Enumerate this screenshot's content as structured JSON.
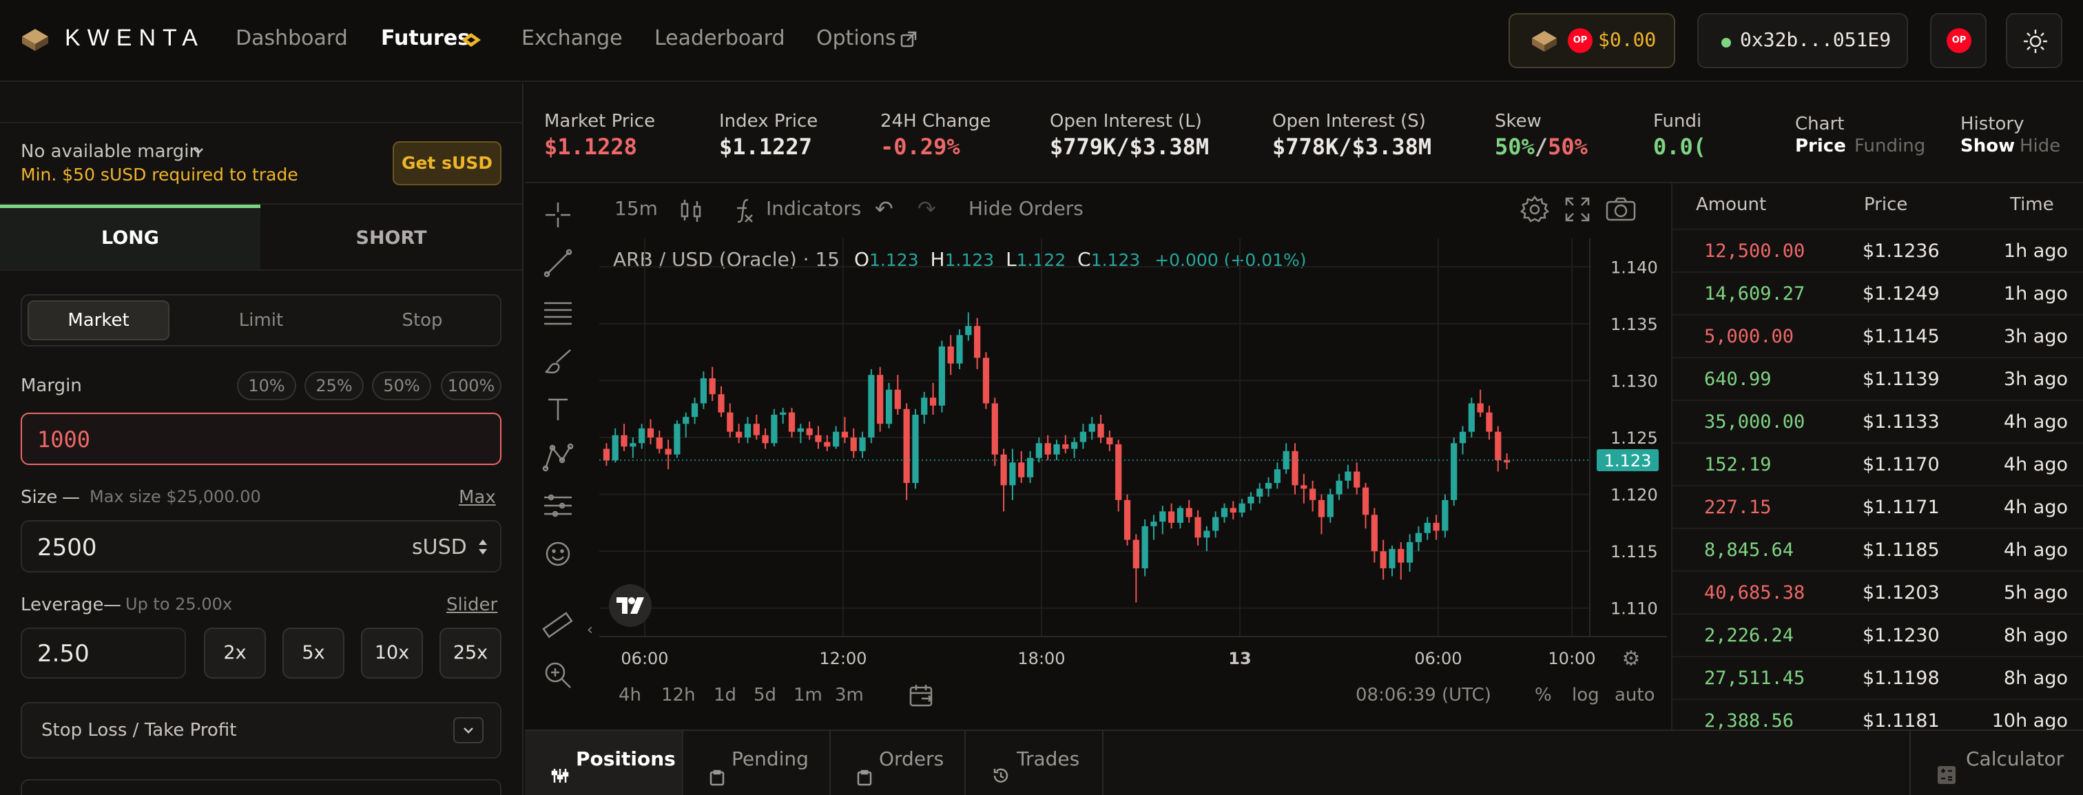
{
  "header": {
    "logo_text": "KWENTA",
    "nav": [
      {
        "label": "Dashboard"
      },
      {
        "label": "Futures"
      },
      {
        "label": "Exchange"
      },
      {
        "label": "Leaderboard"
      },
      {
        "label": "Options"
      }
    ],
    "balance": "$0.00",
    "op_badge": "OP",
    "wallet": "0x32b...051E9"
  },
  "left": {
    "margin_status": "No available margin",
    "margin_warning": "Min. $50 sUSD required to trade",
    "get_susd": "Get sUSD",
    "long_label": "LONG",
    "short_label": "SHORT",
    "order_types": [
      "Market",
      "Limit",
      "Stop"
    ],
    "margin_label": "Margin",
    "percents": [
      "10%",
      "25%",
      "50%",
      "100%"
    ],
    "margin_value": "1000",
    "size_label": "Size",
    "size_dash": "—",
    "max_size": "Max size $25,000.00",
    "max_link": "Max",
    "size_value": "2500",
    "size_unit": "sUSD",
    "leverage_label": "Leverage",
    "leverage_dash": "—",
    "leverage_max": "Up to 25.00x",
    "slider_link": "Slider",
    "leverage_value": "2.50",
    "leverage_options": [
      "2x",
      "5x",
      "10x",
      "25x"
    ],
    "sltp_label": "Stop Loss / Take Profit"
  },
  "market": {
    "items": [
      {
        "label": "Market Price",
        "value": "$1.1228",
        "color": "#ef6868"
      },
      {
        "label": "Index Price",
        "value": "$1.1227",
        "color": "#ece8e3"
      },
      {
        "label": "24H Change",
        "value": "-0.29%",
        "color": "#ef6868"
      },
      {
        "label": "Open Interest (L)",
        "value": "$779K/$3.38M",
        "color": "#ece8e3"
      },
      {
        "label": "Open Interest (S)",
        "value": "$778K/$3.38M",
        "color": "#ece8e3"
      }
    ],
    "skew_label": "Skew",
    "skew_long": "50%",
    "skew_sep": "/",
    "skew_short": "50%",
    "funding_label": "Fundi",
    "funding_value": "0.0(",
    "chart_label": "Chart",
    "chart_price": "Price",
    "chart_funding": "Funding",
    "history_label": "History",
    "history_show": "Show",
    "history_hide": "Hide"
  },
  "chart": {
    "interval": "15m",
    "indicators": "Indicators",
    "hide_orders": "Hide Orders",
    "symbol": "ARB / USD (Oracle) · 15",
    "ohlc": {
      "o_label": "O",
      "o": "1.123",
      "h_label": "H",
      "h": "1.123",
      "l_label": "L",
      "l": "1.122",
      "c_label": "C",
      "c": "1.123",
      "change": "+0.000 (+0.01%)"
    },
    "y_ticks": [
      "1.140",
      "1.135",
      "1.130",
      "1.125",
      "1.120",
      "1.115",
      "1.110"
    ],
    "current_price": "1.123",
    "x_ticks": [
      "06:00",
      "12:00",
      "18:00",
      "13",
      "06:00",
      "10:00"
    ],
    "ranges": [
      "4h",
      "12h",
      "1d",
      "5d",
      "1m",
      "3m"
    ],
    "clock": "08:06:39 (UTC)",
    "pct": "%",
    "log": "log",
    "auto": "auto",
    "up_color": "#26a69a",
    "down_color": "#ef5350",
    "candles": [
      [
        1.124,
        1.1245,
        1.1225,
        1.123
      ],
      [
        1.123,
        1.1258,
        1.1228,
        1.1252
      ],
      [
        1.1252,
        1.1262,
        1.1238,
        1.1242
      ],
      [
        1.1242,
        1.125,
        1.1232,
        1.1245
      ],
      [
        1.1245,
        1.1262,
        1.124,
        1.1258
      ],
      [
        1.1258,
        1.1266,
        1.1244,
        1.125
      ],
      [
        1.125,
        1.1256,
        1.1236,
        1.124
      ],
      [
        1.124,
        1.1248,
        1.1222,
        1.1235
      ],
      [
        1.1235,
        1.1265,
        1.1232,
        1.1262
      ],
      [
        1.1262,
        1.1272,
        1.125,
        1.1268
      ],
      [
        1.1268,
        1.1285,
        1.1262,
        1.128
      ],
      [
        1.128,
        1.1308,
        1.1275,
        1.1302
      ],
      [
        1.1302,
        1.1312,
        1.1282,
        1.1288
      ],
      [
        1.1288,
        1.1295,
        1.1268,
        1.1272
      ],
      [
        1.1272,
        1.128,
        1.125,
        1.1255
      ],
      [
        1.1255,
        1.1262,
        1.1245,
        1.125
      ],
      [
        1.125,
        1.1268,
        1.1245,
        1.1262
      ],
      [
        1.1262,
        1.127,
        1.1248,
        1.1252
      ],
      [
        1.1252,
        1.1258,
        1.124,
        1.1245
      ],
      [
        1.1245,
        1.1275,
        1.1242,
        1.127
      ],
      [
        1.127,
        1.1276,
        1.1262,
        1.1272
      ],
      [
        1.1272,
        1.1276,
        1.125,
        1.1255
      ],
      [
        1.1255,
        1.1262,
        1.1245,
        1.1258
      ],
      [
        1.1258,
        1.1264,
        1.1248,
        1.1252
      ],
      [
        1.1252,
        1.126,
        1.124,
        1.1246
      ],
      [
        1.1246,
        1.1252,
        1.1238,
        1.1242
      ],
      [
        1.1242,
        1.126,
        1.124,
        1.1255
      ],
      [
        1.1255,
        1.1268,
        1.1245,
        1.125
      ],
      [
        1.125,
        1.1258,
        1.1232,
        1.1238
      ],
      [
        1.1238,
        1.1255,
        1.1232,
        1.125
      ],
      [
        1.125,
        1.131,
        1.1245,
        1.1305
      ],
      [
        1.1305,
        1.1312,
        1.1255,
        1.1262
      ],
      [
        1.1262,
        1.1298,
        1.1258,
        1.1292
      ],
      [
        1.1292,
        1.1305,
        1.127,
        1.1275
      ],
      [
        1.1275,
        1.128,
        1.1195,
        1.121
      ],
      [
        1.121,
        1.1275,
        1.1205,
        1.127
      ],
      [
        1.127,
        1.129,
        1.1262,
        1.1285
      ],
      [
        1.1285,
        1.1298,
        1.127,
        1.1278
      ],
      [
        1.1278,
        1.1335,
        1.1272,
        1.133
      ],
      [
        1.133,
        1.134,
        1.1305,
        1.1315
      ],
      [
        1.1315,
        1.1345,
        1.131,
        1.134
      ],
      [
        1.134,
        1.136,
        1.1335,
        1.1348
      ],
      [
        1.1348,
        1.1355,
        1.131,
        1.132
      ],
      [
        1.132,
        1.1325,
        1.1275,
        1.128
      ],
      [
        1.128,
        1.1285,
        1.1225,
        1.1235
      ],
      [
        1.1235,
        1.124,
        1.1185,
        1.1208
      ],
      [
        1.1208,
        1.124,
        1.1195,
        1.1228
      ],
      [
        1.1228,
        1.1238,
        1.121,
        1.1215
      ],
      [
        1.1215,
        1.1238,
        1.121,
        1.1232
      ],
      [
        1.1232,
        1.125,
        1.1228,
        1.1245
      ],
      [
        1.1245,
        1.1252,
        1.123,
        1.1235
      ],
      [
        1.1235,
        1.1248,
        1.123,
        1.1244
      ],
      [
        1.1244,
        1.1252,
        1.1236,
        1.124
      ],
      [
        1.124,
        1.125,
        1.1232,
        1.1246
      ],
      [
        1.1246,
        1.1262,
        1.124,
        1.1255
      ],
      [
        1.1255,
        1.1268,
        1.1248,
        1.1262
      ],
      [
        1.1262,
        1.127,
        1.1245,
        1.125
      ],
      [
        1.125,
        1.1256,
        1.1238,
        1.1244
      ],
      [
        1.1244,
        1.1248,
        1.1185,
        1.1195
      ],
      [
        1.1195,
        1.12,
        1.1155,
        1.116
      ],
      [
        1.116,
        1.1165,
        1.1105,
        1.1135
      ],
      [
        1.1135,
        1.1178,
        1.1128,
        1.1172
      ],
      [
        1.1172,
        1.1182,
        1.116,
        1.1176
      ],
      [
        1.1176,
        1.119,
        1.1165,
        1.1185
      ],
      [
        1.1185,
        1.1192,
        1.117,
        1.1175
      ],
      [
        1.1175,
        1.119,
        1.117,
        1.1188
      ],
      [
        1.1188,
        1.1195,
        1.1175,
        1.118
      ],
      [
        1.118,
        1.1186,
        1.1155,
        1.1162
      ],
      [
        1.1162,
        1.1172,
        1.115,
        1.1168
      ],
      [
        1.1168,
        1.1185,
        1.1162,
        1.118
      ],
      [
        1.118,
        1.1192,
        1.1175,
        1.1188
      ],
      [
        1.1188,
        1.1194,
        1.1178,
        1.1184
      ],
      [
        1.1184,
        1.1196,
        1.118,
        1.1192
      ],
      [
        1.1192,
        1.1202,
        1.1186,
        1.1198
      ],
      [
        1.1198,
        1.121,
        1.1192,
        1.1205
      ],
      [
        1.1205,
        1.1215,
        1.1198,
        1.121
      ],
      [
        1.121,
        1.1228,
        1.1205,
        1.1222
      ],
      [
        1.1222,
        1.1245,
        1.1218,
        1.1238
      ],
      [
        1.1238,
        1.1245,
        1.12,
        1.1208
      ],
      [
        1.1208,
        1.1218,
        1.1192,
        1.1205
      ],
      [
        1.1205,
        1.1212,
        1.1185,
        1.1195
      ],
      [
        1.1195,
        1.12,
        1.1165,
        1.118
      ],
      [
        1.118,
        1.1205,
        1.1175,
        1.12
      ],
      [
        1.12,
        1.1218,
        1.1195,
        1.1212
      ],
      [
        1.1212,
        1.1226,
        1.1205,
        1.122
      ],
      [
        1.122,
        1.1228,
        1.12,
        1.1206
      ],
      [
        1.1206,
        1.121,
        1.117,
        1.1182
      ],
      [
        1.1182,
        1.1188,
        1.114,
        1.115
      ],
      [
        1.115,
        1.116,
        1.1125,
        1.1135
      ],
      [
        1.1135,
        1.1155,
        1.1128,
        1.1152
      ],
      [
        1.1152,
        1.1158,
        1.1125,
        1.114
      ],
      [
        1.114,
        1.1165,
        1.1132,
        1.1158
      ],
      [
        1.1158,
        1.1172,
        1.115,
        1.1166
      ],
      [
        1.1166,
        1.118,
        1.116,
        1.1175
      ],
      [
        1.1175,
        1.1182,
        1.116,
        1.1168
      ],
      [
        1.1168,
        1.12,
        1.1162,
        1.1195
      ],
      [
        1.1195,
        1.125,
        1.119,
        1.1245
      ],
      [
        1.1245,
        1.126,
        1.1235,
        1.1255
      ],
      [
        1.1255,
        1.1285,
        1.125,
        1.128
      ],
      [
        1.128,
        1.1292,
        1.1268,
        1.1272
      ],
      [
        1.1272,
        1.1278,
        1.1248,
        1.1255
      ],
      [
        1.1255,
        1.126,
        1.122,
        1.123
      ],
      [
        1.123,
        1.1236,
        1.1222,
        1.1228
      ]
    ]
  },
  "trades": {
    "headers": [
      "Amount",
      "Price",
      "Time"
    ],
    "rows": [
      {
        "amount": "12,500.00",
        "price": "$1.1236",
        "time": "1h ago",
        "side": "short"
      },
      {
        "amount": "14,609.27",
        "price": "$1.1249",
        "time": "1h ago",
        "side": "long"
      },
      {
        "amount": "5,000.00",
        "price": "$1.1145",
        "time": "3h ago",
        "side": "short"
      },
      {
        "amount": "640.99",
        "price": "$1.1139",
        "time": "3h ago",
        "side": "long"
      },
      {
        "amount": "35,000.00",
        "price": "$1.1133",
        "time": "4h ago",
        "side": "long"
      },
      {
        "amount": "152.19",
        "price": "$1.1170",
        "time": "4h ago",
        "side": "long"
      },
      {
        "amount": "227.15",
        "price": "$1.1171",
        "time": "4h ago",
        "side": "short"
      },
      {
        "amount": "8,845.64",
        "price": "$1.1185",
        "time": "4h ago",
        "side": "long"
      },
      {
        "amount": "40,685.38",
        "price": "$1.1203",
        "time": "5h ago",
        "side": "short"
      },
      {
        "amount": "2,226.24",
        "price": "$1.1230",
        "time": "8h ago",
        "side": "long"
      },
      {
        "amount": "27,511.45",
        "price": "$1.1198",
        "time": "8h ago",
        "side": "long"
      },
      {
        "amount": "2,388.56",
        "price": "$1.1181",
        "time": "10h ago",
        "side": "long"
      }
    ]
  },
  "bottom": {
    "tabs": [
      "Positions",
      "Pending",
      "Orders",
      "Trades"
    ],
    "calculator": "Calculator"
  },
  "colors": {
    "accent": "#f0b429",
    "long": "#7fd482",
    "short": "#ef6868"
  }
}
